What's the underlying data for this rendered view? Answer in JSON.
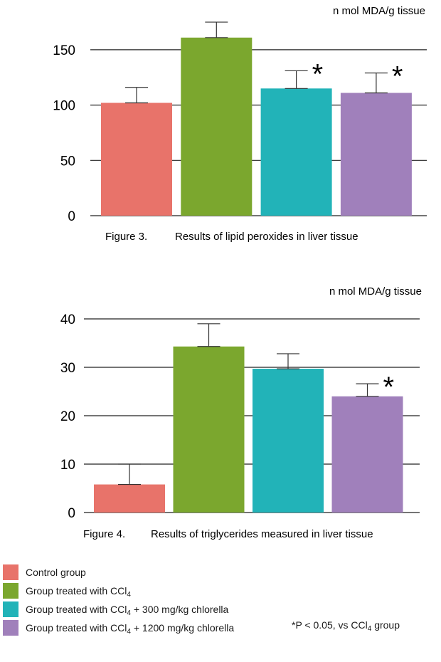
{
  "chart_data": [
    {
      "type": "bar",
      "unit_label": "n mol MDA/g tissue",
      "caption_number": "Figure 3.",
      "caption_text": "Results of lipid peroxides in liver tissue",
      "categories": [
        "Control group",
        "Group treated with CCl4",
        "Group treated with CCl4 + 300 mg/kg chlorella",
        "Group treated with CCl4 + 1200 mg/kg chlorella"
      ],
      "values": [
        102,
        161,
        115,
        111
      ],
      "errors": [
        14,
        14,
        16,
        18
      ],
      "significant": [
        false,
        false,
        true,
        true
      ],
      "yticks": [
        "0",
        "50",
        "100",
        "150"
      ],
      "ylim": [
        0,
        176
      ],
      "grid": true
    },
    {
      "type": "bar",
      "unit_label": "n mol MDA/g tissue",
      "caption_number": "Figure 4.",
      "caption_text": "Results of triglycerides measured in liver tissue",
      "categories": [
        "Control group",
        "Group treated with CCl4",
        "Group treated with CCl4 + 300 mg/kg chlorella",
        "Group treated with CCl4 + 1200 mg/kg chlorella"
      ],
      "values": [
        5.8,
        34.3,
        29.7,
        24.0
      ],
      "errors": [
        4.2,
        4.7,
        3.1,
        2.6
      ],
      "significant": [
        false,
        false,
        false,
        true
      ],
      "yticks": [
        "0",
        "10",
        "20",
        "30",
        "40"
      ],
      "ylim": [
        0,
        40
      ],
      "grid": true
    }
  ],
  "colors": [
    "#e8736a",
    "#7ba72e",
    "#22b3b8",
    "#a080bb"
  ],
  "significance_mark": "*",
  "legend": {
    "items": [
      {
        "prefix": "Control group",
        "sub": "",
        "suffix": ""
      },
      {
        "prefix": "Group treated with CCl",
        "sub": "4",
        "suffix": ""
      },
      {
        "prefix": "Group treated with CCl",
        "sub": "4",
        "suffix": " + 300 mg/kg chlorella"
      },
      {
        "prefix": "Group treated with CCl",
        "sub": "4",
        "suffix": " + 1200 mg/kg chlorella"
      }
    ],
    "footnote": {
      "prefix": "*P < 0.05, vs CCl",
      "sub": "4",
      "suffix": " group"
    }
  }
}
